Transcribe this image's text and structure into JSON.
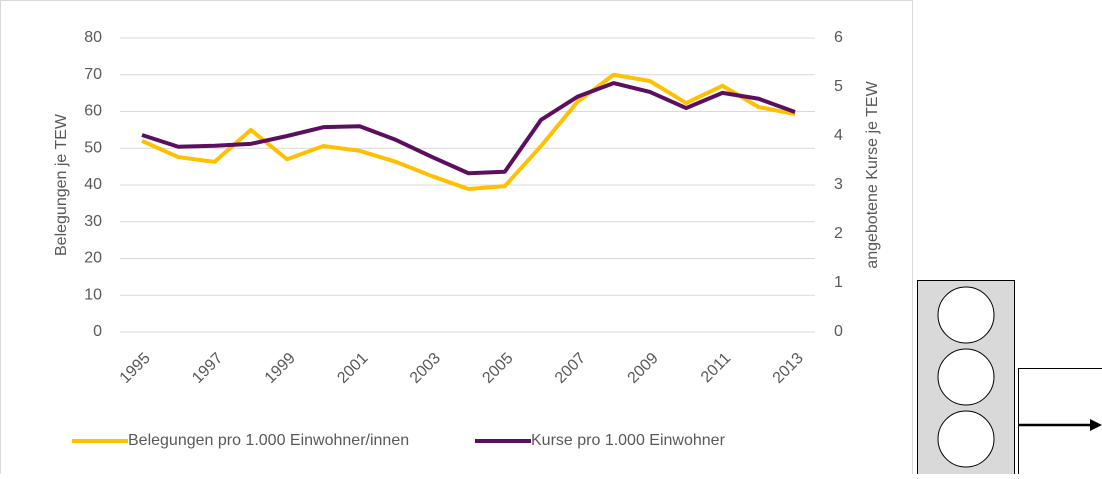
{
  "chart_data": {
    "type": "line",
    "categories": [
      "1995",
      null,
      "1997",
      null,
      "1999",
      null,
      "2001",
      null,
      "2003",
      null,
      "2005",
      null,
      "2007",
      null,
      "2009",
      null,
      "2011",
      null,
      "2013"
    ],
    "ylabel": "Belegungen je TEW",
    "y2label": "angebotene Kurse je TEW",
    "ylim": [
      0,
      80
    ],
    "yticks": [
      0,
      10,
      20,
      30,
      40,
      50,
      60,
      70,
      80
    ],
    "y2lim": [
      0,
      6
    ],
    "y2ticks": [
      0,
      1,
      2,
      3,
      4,
      5,
      6
    ],
    "grid": true,
    "legend": "bottom",
    "series": [
      {
        "name": "Belegungen pro 1.000 Einwohner/innen",
        "color": "#ffc000",
        "values": [
          52,
          47.6,
          46.3,
          55,
          47,
          50.6,
          49.3,
          46.3,
          42.4,
          38.9,
          39.7,
          50.6,
          62.6,
          70,
          68.3,
          62.3,
          67,
          61.2,
          59.3
        ]
      },
      {
        "name": "Kurse pro 1.000 Einwohner",
        "color": "#5b0f5f",
        "axis": "y2",
        "values": [
          4.02,
          3.78,
          3.8,
          3.84,
          4.0,
          4.18,
          4.2,
          3.92,
          3.57,
          3.24,
          3.27,
          4.33,
          4.8,
          5.08,
          4.9,
          4.57,
          4.88,
          4.76,
          4.49
        ]
      }
    ]
  }
}
